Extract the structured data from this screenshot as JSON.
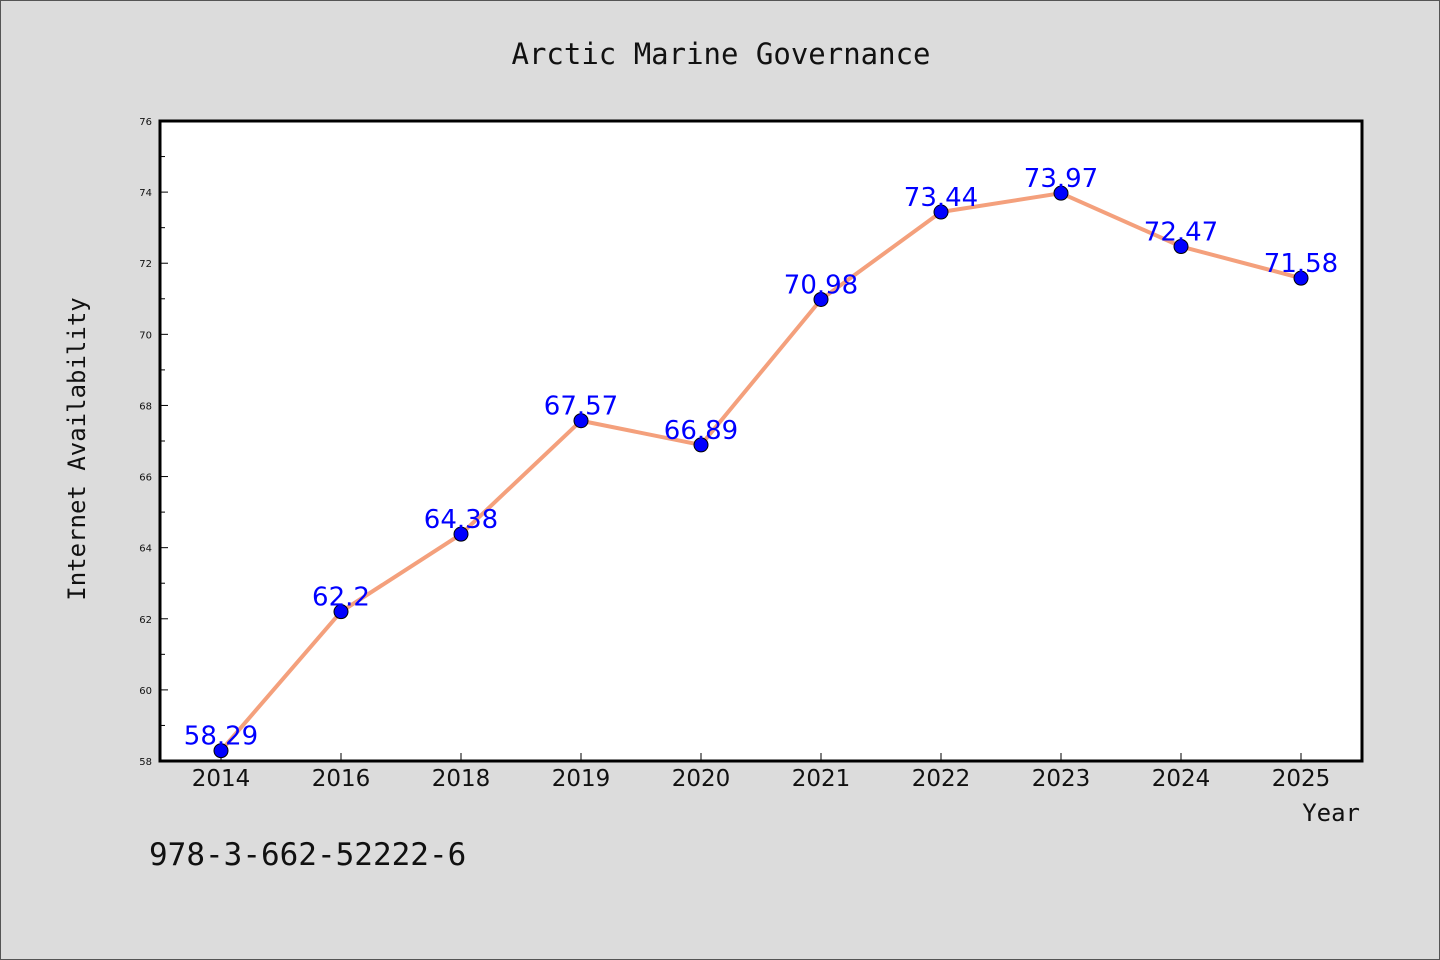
{
  "chart_data": {
    "type": "line",
    "title": "Arctic Marine Governance",
    "xlabel": "Year",
    "ylabel": "Internet Availability",
    "categories": [
      "2014",
      "2016",
      "2018",
      "2019",
      "2020",
      "2021",
      "2022",
      "2023",
      "2024",
      "2025"
    ],
    "series": [
      {
        "values": [
          58.29,
          62.2,
          64.38,
          67.57,
          66.89,
          70.98,
          73.44,
          73.97,
          72.47,
          71.58
        ],
        "data_labels": [
          "58.29",
          "62.2",
          "64.38",
          "67.57",
          "66.89",
          "70.98",
          "73.44",
          "73.97",
          "72.47",
          "71.58"
        ]
      }
    ],
    "ylim": [
      58,
      76
    ],
    "yticks": [
      58,
      60,
      62,
      64,
      66,
      68,
      70,
      72,
      74,
      76
    ],
    "grid": false,
    "line_color": "#f4a07c",
    "marker_color": "#0000ff",
    "label_color": "#0000ff"
  },
  "footer_text": "978-3-662-52222-6"
}
